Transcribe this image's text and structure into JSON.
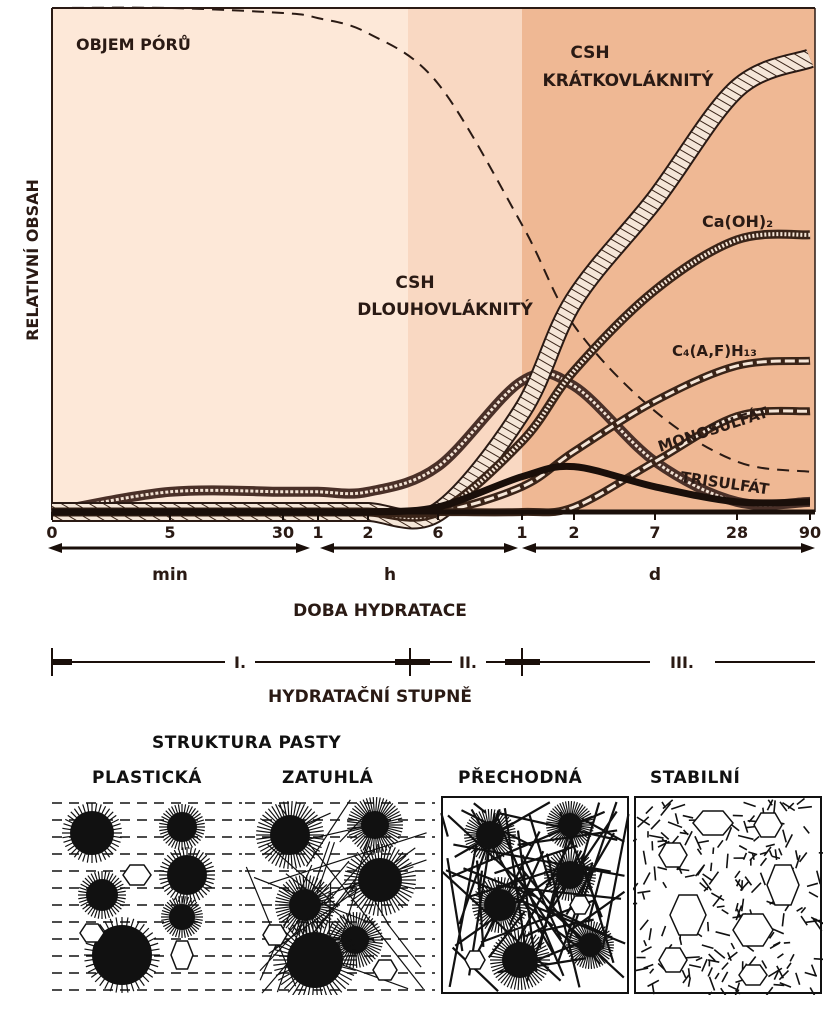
{
  "chart_data": {
    "type": "line",
    "ylabel": "RELATIVNÍ OBSAH",
    "xlabel": "DOBA HYDRATACE",
    "ticks": [
      "0",
      "5",
      "30",
      "1",
      "2",
      "6",
      "1",
      "2",
      "7",
      "28",
      "90"
    ],
    "unit_labels": [
      "min",
      "h",
      "d"
    ],
    "series": [
      {
        "name": "OBJEM PÓRŮ",
        "values": [
          1.0,
          1.0,
          0.99,
          0.98,
          0.95,
          0.85,
          0.57,
          0.37,
          0.2,
          0.1,
          0.08
        ]
      },
      {
        "name": "CSH DLOUHOVLÁKNITÝ",
        "values": [
          0,
          0.04,
          0.04,
          0.04,
          0.04,
          0.09,
          0.26,
          0.25,
          0.1,
          0.02,
          0.02
        ]
      },
      {
        "name": "CSH KRÁTKOVLÁKNITÝ",
        "values": [
          0,
          0,
          0,
          0,
          0,
          0,
          0.2,
          0.42,
          0.62,
          0.84,
          0.9
        ]
      },
      {
        "name": "Ca(OH)₂",
        "values": [
          0,
          0,
          0,
          0,
          0,
          0,
          0.14,
          0.28,
          0.44,
          0.54,
          0.55
        ]
      },
      {
        "name": "C₄(A,F)H₁₃",
        "values": [
          0,
          0,
          0,
          0,
          0,
          0,
          0.05,
          0.12,
          0.22,
          0.29,
          0.3
        ]
      },
      {
        "name": "MONOSULFÁT",
        "values": [
          0,
          0,
          0,
          0,
          0,
          0,
          0,
          0.01,
          0.1,
          0.19,
          0.2
        ]
      },
      {
        "name": "TRISULFÁT",
        "values": [
          0,
          0,
          0,
          0,
          0,
          0.01,
          0.07,
          0.09,
          0.05,
          0.02,
          0.02
        ]
      }
    ],
    "stages": [
      "I.",
      "II.",
      "III."
    ],
    "stage_axis_label": "HYDRATAČNÍ STUPNĚ",
    "stage_colors": [
      "#fde8d8",
      "#f9d8c2",
      "#efb894"
    ],
    "grid": false
  },
  "structure": {
    "title": "STRUKTURA PASTY",
    "panels": [
      "PLASTICKÁ",
      "ZATUHLÁ",
      "PŘECHODNÁ",
      "STABILNÍ"
    ]
  }
}
